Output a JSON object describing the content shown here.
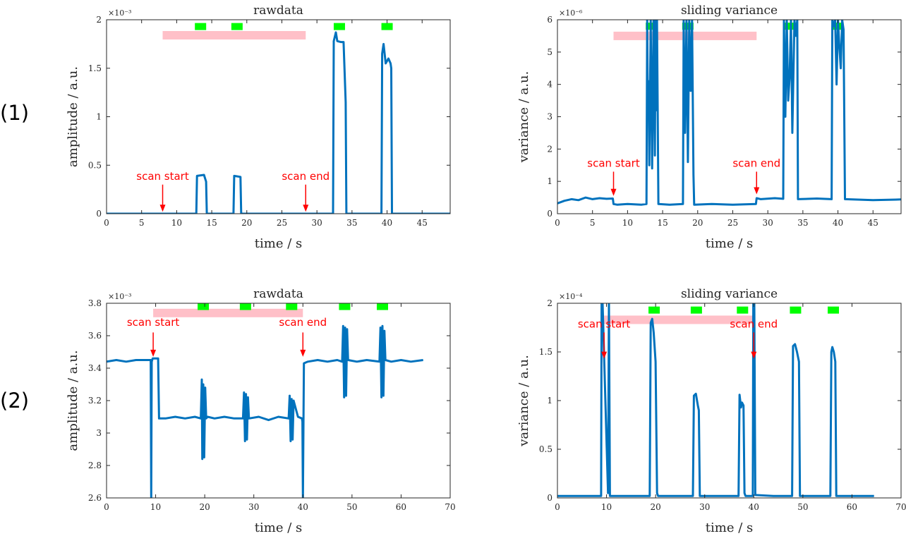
{
  "row_labels": [
    "(1)",
    "(2)"
  ],
  "colors": {
    "line": "#0072bd",
    "scan_bar": "#ffc0c8",
    "marker": "#00ff00",
    "annotation": "#ff0000",
    "axis": "#262626"
  },
  "chart_data": [
    {
      "type": "line",
      "title": "rawdata",
      "xlabel": "time / s",
      "ylabel": "amplitude / a.u.",
      "exponent": "×10⁻³",
      "xlim": [
        0,
        49
      ],
      "ylim": [
        0,
        2
      ],
      "xticks": [
        0,
        5,
        10,
        15,
        20,
        25,
        30,
        35,
        40,
        45
      ],
      "xtick_labels": [
        "0",
        "5",
        "10",
        "15",
        "20",
        "25",
        "30",
        "35",
        "40",
        "45"
      ],
      "yticks": [
        0,
        0.5,
        1,
        1.5,
        2
      ],
      "ytick_labels": [
        "0",
        "0.5",
        "1",
        "1.5",
        "2"
      ],
      "scan_bar": {
        "x0": 8.0,
        "x1": 28.4,
        "y": 1.84
      },
      "markers": [
        13.4,
        18.6,
        33.2,
        40.0
      ],
      "marker_y": 1.93,
      "annotations": [
        {
          "text": "scan start",
          "x": 8.0,
          "y_text": 0.35,
          "y_arrow_start": 0.3,
          "y_arrow_end": 0.02
        },
        {
          "text": "scan end",
          "x": 28.4,
          "y_text": 0.35,
          "y_arrow_start": 0.3,
          "y_arrow_end": 0.02
        }
      ],
      "series": [
        {
          "name": "rawdata",
          "x": [
            0,
            12.8,
            12.9,
            13.9,
            14.2,
            14.3,
            18.1,
            18.2,
            19.1,
            19.2,
            32.3,
            32.4,
            32.7,
            32.9,
            33.4,
            33.8,
            34.1,
            34.2,
            39.2,
            39.3,
            39.5,
            39.8,
            40.2,
            40.5,
            40.6,
            40.7,
            49
          ],
          "y": [
            0,
            0,
            0.39,
            0.4,
            0.33,
            0,
            0,
            0.39,
            0.38,
            0,
            0,
            1.78,
            1.87,
            1.78,
            1.77,
            1.77,
            1.15,
            0,
            0,
            1.65,
            1.75,
            1.55,
            1.6,
            1.55,
            1.5,
            0,
            0
          ]
        }
      ]
    },
    {
      "type": "line",
      "title": "sliding variance",
      "xlabel": "time / s",
      "ylabel": "variance / a.u.",
      "exponent": "×10⁻⁶",
      "xlim": [
        0,
        49
      ],
      "ylim": [
        0,
        6
      ],
      "xticks": [
        0,
        5,
        10,
        15,
        20,
        25,
        30,
        35,
        40,
        45
      ],
      "xtick_labels": [
        "0",
        "5",
        "10",
        "15",
        "20",
        "25",
        "30",
        "35",
        "40",
        "45"
      ],
      "yticks": [
        0,
        1,
        2,
        3,
        4,
        5,
        6
      ],
      "ytick_labels": [
        "0",
        "1",
        "2",
        "3",
        "4",
        "5",
        "6"
      ],
      "scan_bar": {
        "x0": 8.0,
        "x1": 28.4,
        "y": 5.5
      },
      "markers": [
        13.4,
        18.6,
        33.2,
        40.0
      ],
      "marker_y": 5.8,
      "annotations": [
        {
          "text": "scan start",
          "x": 8.0,
          "y_text": 1.45,
          "y_arrow_start": 1.3,
          "y_arrow_end": 0.55
        },
        {
          "text": "scan end",
          "x": 28.4,
          "y_text": 1.45,
          "y_arrow_start": 1.3,
          "y_arrow_end": 0.6
        }
      ],
      "series": [
        {
          "name": "sliding variance",
          "x": [
            0,
            1,
            2,
            3,
            4,
            5,
            6,
            7,
            7.9,
            8.0,
            8.5,
            10,
            12,
            12.7,
            12.8,
            12.9,
            13.0,
            13.1,
            13.3,
            13.5,
            13.7,
            13.9,
            14.0,
            14.1,
            14.2,
            14.4,
            16,
            17.9,
            18.0,
            18.2,
            18.4,
            18.6,
            18.8,
            19.0,
            19.2,
            19.4,
            19.5,
            22,
            25,
            28.3,
            28.4,
            29,
            31,
            32.2,
            32.3,
            32.5,
            32.7,
            32.9,
            33.1,
            33.3,
            33.5,
            33.8,
            34.0,
            34.2,
            34.3,
            37,
            39.1,
            39.2,
            39.4,
            39.6,
            39.8,
            40.0,
            40.2,
            40.4,
            40.6,
            40.8,
            41,
            45,
            49
          ],
          "y": [
            0.32,
            0.4,
            0.45,
            0.42,
            0.5,
            0.45,
            0.48,
            0.46,
            0.47,
            0.3,
            0.28,
            0.3,
            0.28,
            0.3,
            6,
            3,
            4.1,
            1.5,
            6,
            1.4,
            6,
            1.8,
            6,
            3.2,
            6,
            0.3,
            0.28,
            0.3,
            6,
            2.5,
            6,
            1.6,
            6,
            3.8,
            6,
            1.2,
            0.28,
            0.3,
            0.28,
            0.3,
            0.48,
            0.45,
            0.48,
            0.46,
            6,
            3.0,
            6,
            3.5,
            4.2,
            6,
            2.5,
            6,
            5.5,
            6,
            0.45,
            0.47,
            0.45,
            6,
            5.8,
            6,
            4.0,
            6,
            5.2,
            4.5,
            6,
            5.7,
            0.45,
            0.42,
            0.44
          ]
        }
      ]
    },
    {
      "type": "line",
      "title": "rawdata",
      "xlabel": "time / s",
      "ylabel": "amplitude / a.u.",
      "exponent": "×10⁻³",
      "xlim": [
        0,
        70
      ],
      "ylim": [
        2.6,
        3.8
      ],
      "xticks": [
        0,
        10,
        20,
        30,
        40,
        50,
        60,
        70
      ],
      "xtick_labels": [
        "0",
        "10",
        "20",
        "30",
        "40",
        "50",
        "60",
        "70"
      ],
      "yticks": [
        2.6,
        2.8,
        3.0,
        3.2,
        3.4,
        3.6,
        3.8
      ],
      "ytick_labels": [
        "2.6",
        "2.8",
        "3",
        "3.2",
        "3.4",
        "3.6",
        "3.8"
      ],
      "scan_bar": {
        "x0": 9.5,
        "x1": 40.0,
        "y": 3.74
      },
      "markers": [
        19.7,
        28.3,
        37.7,
        48.5,
        56.2
      ],
      "marker_y": 3.78,
      "annotations": [
        {
          "text": "scan start",
          "x": 9.5,
          "y_text": 3.66,
          "y_arrow_start": 3.62,
          "y_arrow_end": 3.47
        },
        {
          "text": "scan end",
          "x": 40.0,
          "y_text": 3.66,
          "y_arrow_start": 3.62,
          "y_arrow_end": 3.47
        }
      ],
      "series": [
        {
          "name": "rawdata",
          "x": [
            0,
            2,
            4,
            6,
            8,
            9.0,
            9.1,
            9.2,
            9.4,
            10.5,
            10.7,
            12,
            14,
            16,
            18,
            19.2,
            19.4,
            19.5,
            19.7,
            19.9,
            20.1,
            20.3,
            20.6,
            22,
            24,
            26,
            27.8,
            28.0,
            28.2,
            28.4,
            28.6,
            28.8,
            29.0,
            31,
            33,
            35,
            37.1,
            37.3,
            37.5,
            37.7,
            37.9,
            38.1,
            39,
            39.8,
            39.9,
            40.0,
            40.2,
            41,
            43,
            45,
            47,
            48.0,
            48.2,
            48.4,
            48.6,
            48.8,
            49.0,
            49.2,
            51,
            53,
            55.6,
            55.8,
            56.0,
            56.2,
            56.4,
            56.6,
            56.8,
            58,
            60,
            62,
            64.5
          ],
          "y": [
            3.44,
            3.45,
            3.44,
            3.45,
            3.45,
            3.45,
            2.6,
            3.44,
            3.46,
            3.46,
            3.09,
            3.09,
            3.1,
            3.09,
            3.1,
            3.09,
            3.33,
            2.84,
            3.3,
            2.85,
            3.28,
            3.09,
            3.1,
            3.09,
            3.1,
            3.09,
            3.09,
            3.25,
            2.95,
            3.24,
            2.96,
            3.22,
            3.09,
            3.1,
            3.08,
            3.1,
            3.09,
            3.23,
            2.95,
            3.21,
            2.96,
            3.2,
            3.1,
            3.09,
            3.07,
            2.6,
            3.43,
            3.44,
            3.45,
            3.44,
            3.45,
            3.44,
            3.66,
            3.22,
            3.65,
            3.23,
            3.64,
            3.45,
            3.44,
            3.45,
            3.44,
            3.65,
            3.22,
            3.66,
            3.23,
            3.63,
            3.45,
            3.44,
            3.45,
            3.44,
            3.45
          ]
        }
      ]
    },
    {
      "type": "line",
      "title": "sliding variance",
      "xlabel": "time / s",
      "ylabel": "variance / a.u.",
      "exponent": "×10⁻⁴",
      "xlim": [
        0,
        70
      ],
      "ylim": [
        0,
        2
      ],
      "xticks": [
        0,
        10,
        20,
        30,
        40,
        50,
        60,
        70
      ],
      "xtick_labels": [
        "0",
        "10",
        "20",
        "30",
        "40",
        "50",
        "60",
        "70"
      ],
      "yticks": [
        0,
        0.5,
        1,
        1.5,
        2
      ],
      "ytick_labels": [
        "0",
        "0.5",
        "1",
        "1.5",
        "2"
      ],
      "scan_bar": {
        "x0": 9.5,
        "x1": 40.0,
        "y": 1.83
      },
      "markers": [
        19.7,
        28.3,
        37.7,
        48.5,
        56.2
      ],
      "marker_y": 1.93,
      "annotations": [
        {
          "text": "scan start",
          "x": 9.5,
          "y_text": 1.75,
          "y_arrow_start": 1.7,
          "y_arrow_end": 1.43
        },
        {
          "text": "scan end",
          "x": 40.0,
          "y_text": 1.75,
          "y_arrow_start": 1.7,
          "y_arrow_end": 1.43
        }
      ],
      "series": [
        {
          "name": "sliding variance",
          "x": [
            0,
            5,
            8.9,
            9.0,
            9.2,
            10.3,
            10.5,
            10.7,
            11,
            15,
            18.8,
            19.0,
            19.3,
            19.6,
            20.0,
            20.3,
            20.5,
            24,
            27.6,
            27.8,
            28.2,
            28.6,
            28.8,
            29.0,
            33,
            36.9,
            37.1,
            37.4,
            37.6,
            37.9,
            38.1,
            38.3,
            39.8,
            39.9,
            40.1,
            40.3,
            44,
            47.8,
            48.0,
            48.4,
            48.8,
            49.2,
            49.4,
            53,
            55.6,
            55.8,
            56.0,
            56.3,
            56.6,
            56.8,
            60,
            64.5
          ],
          "y": [
            0.02,
            0.02,
            0.02,
            2,
            2,
            0.05,
            2,
            0.02,
            0.02,
            0.02,
            0.02,
            1.8,
            1.84,
            1.7,
            1.4,
            0.05,
            0.02,
            0.02,
            0.02,
            1.05,
            1.07,
            0.95,
            0.9,
            0.02,
            0.02,
            0.02,
            1.06,
            0.93,
            0.98,
            0.95,
            0.05,
            0.02,
            0.02,
            2,
            2,
            0.03,
            0.02,
            0.02,
            1.56,
            1.58,
            1.5,
            1.4,
            0.02,
            0.02,
            0.02,
            1.5,
            1.55,
            1.5,
            1.4,
            0.02,
            0.02,
            0.02
          ]
        }
      ]
    }
  ]
}
